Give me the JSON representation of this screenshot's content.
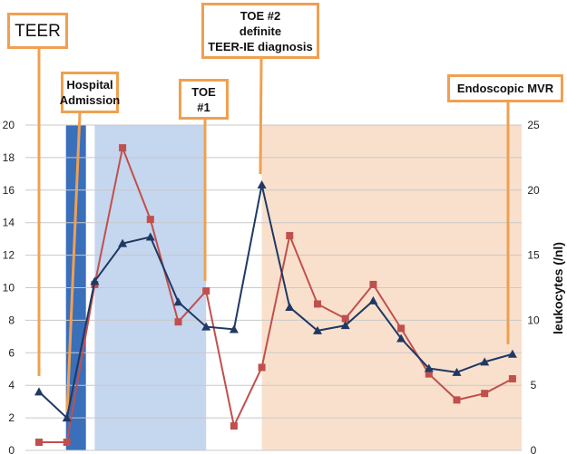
{
  "chart_data": {
    "type": "line",
    "x": [
      1,
      2,
      3,
      4,
      5,
      6,
      7,
      8,
      9,
      10,
      11,
      12,
      13,
      14,
      15,
      16,
      17,
      18
    ],
    "y_left_range": [
      0,
      20
    ],
    "y_left_ticks": [
      "0",
      "2",
      "4",
      "6",
      "8",
      "10",
      "12",
      "14",
      "16",
      "18",
      "20"
    ],
    "y_right_range": [
      0,
      25
    ],
    "y_right_ticks": [
      "0",
      "5",
      "10",
      "15",
      "20",
      "25"
    ],
    "ylabel_right": "leukocytes (/nl)",
    "series": [
      {
        "axis": "left",
        "color": "#c0504d",
        "marker": "square",
        "values": [
          0.5,
          0.5,
          10.2,
          18.6,
          14.2,
          7.9,
          9.8,
          1.5,
          5.1,
          13.2,
          9.0,
          8.1,
          10.2,
          7.5,
          4.7,
          3.1,
          3.5,
          4.4
        ]
      },
      {
        "axis": "right",
        "color": "#1f3864",
        "marker": "triangle",
        "values": [
          4.5,
          2.5,
          13.0,
          15.9,
          16.4,
          11.4,
          9.5,
          9.3,
          20.4,
          11.0,
          9.2,
          9.6,
          11.5,
          8.6,
          6.3,
          6.0,
          6.8,
          7.4
        ]
      }
    ],
    "shaded_regions": [
      {
        "from": 2,
        "to": 3,
        "color": "#3a6fba"
      },
      {
        "from": 3,
        "to": 7,
        "color": "#c5d6ef"
      },
      {
        "from": 9,
        "to": 18.4,
        "color": "#f9e0cc"
      }
    ],
    "grid": true
  },
  "annotations": [
    {
      "text": "TEER",
      "x": 1
    },
    {
      "text": "Hospital\nAdmission",
      "x": 2
    },
    {
      "text": "TOE\n#1",
      "x": 7
    },
    {
      "text": "TOE #2\ndefinite\nTEER-IE diagnosis",
      "x": 9
    },
    {
      "text": "Endoscopic MVR",
      "x": 18
    }
  ],
  "colors": {
    "annotation_border": "#f0a050",
    "grid": "#c8c8c8"
  }
}
